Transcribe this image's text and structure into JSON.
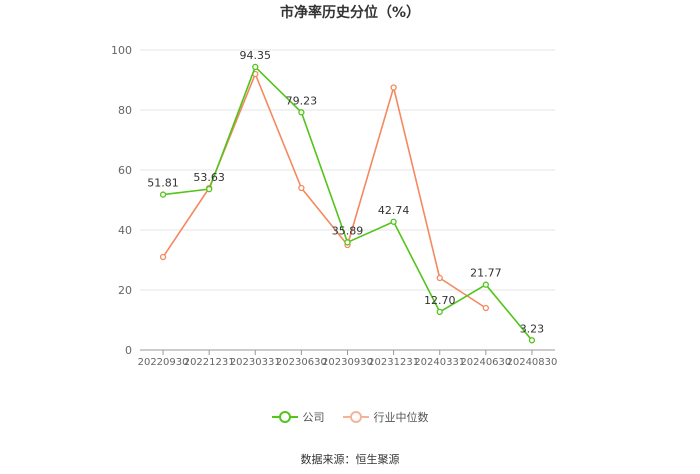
{
  "chart_data": {
    "type": "line",
    "title": "市净率历史分位（%）",
    "x": [
      "20220930",
      "20221231",
      "20230331",
      "20230630",
      "20230930",
      "20231231",
      "20240331",
      "20240630",
      "20240830"
    ],
    "ylim": [
      0,
      100
    ],
    "yticks": [
      0,
      20,
      40,
      60,
      80,
      100
    ],
    "grid": true,
    "legend_position": "bottom",
    "series": [
      {
        "name": "公司",
        "color": "#52c41a",
        "values": [
          51.81,
          53.63,
          94.35,
          79.23,
          35.89,
          42.74,
          12.7,
          21.77,
          3.23
        ],
        "labels": [
          "51.81",
          "53.63",
          "94.35",
          "79.23",
          "35.89",
          "42.74",
          "12.70",
          "21.77",
          "3.23"
        ]
      },
      {
        "name": "行业中位数",
        "color": "#f4895f",
        "values": [
          31.0,
          54.0,
          92.0,
          54.0,
          35.0,
          87.5,
          24.0,
          14.0,
          null
        ]
      }
    ]
  },
  "source": "数据来源：恒生聚源"
}
